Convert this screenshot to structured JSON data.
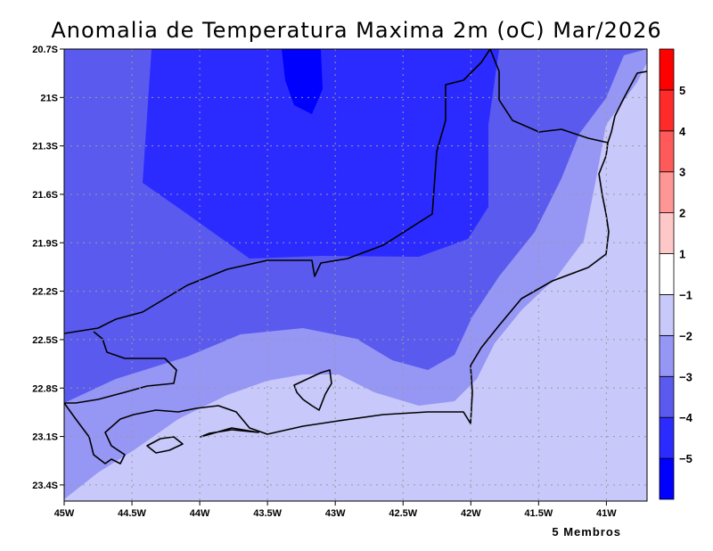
{
  "title": "Anomalia de Temperatura Maxima 2m (oC) Mar/2026",
  "footer_note": "5 Membros",
  "map": {
    "lon_range": [
      -45,
      -40.7
    ],
    "lat_range": [
      -23.5,
      -20.7
    ],
    "x_ticks": [
      "45W",
      "44.5W",
      "44W",
      "43.5W",
      "43W",
      "42.5W",
      "42W",
      "41.5W",
      "41W"
    ],
    "y_ticks": [
      "20.7S",
      "21S",
      "21.3S",
      "21.6S",
      "21.9S",
      "22.2S",
      "22.5S",
      "22.8S",
      "23.1S",
      "23.4S"
    ],
    "grid": true
  },
  "colorbar": {
    "levels": [
      {
        "color": "#0000ff",
        "label": "−5"
      },
      {
        "color": "#2b2bff",
        "label": "−4"
      },
      {
        "color": "#5a5aef",
        "label": "−3"
      },
      {
        "color": "#9696f5",
        "label": "−2"
      },
      {
        "color": "#c8c8fa",
        "label": "−1"
      },
      {
        "color": "#ffffff",
        "label": "1"
      },
      {
        "color": "#ffc8c8",
        "label": "2"
      },
      {
        "color": "#ff9696",
        "label": "3"
      },
      {
        "color": "#ff5a5a",
        "label": "4"
      },
      {
        "color": "#ff2b2b",
        "label": "5"
      },
      {
        "color": "#ff0000",
        "label": ""
      }
    ]
  }
}
